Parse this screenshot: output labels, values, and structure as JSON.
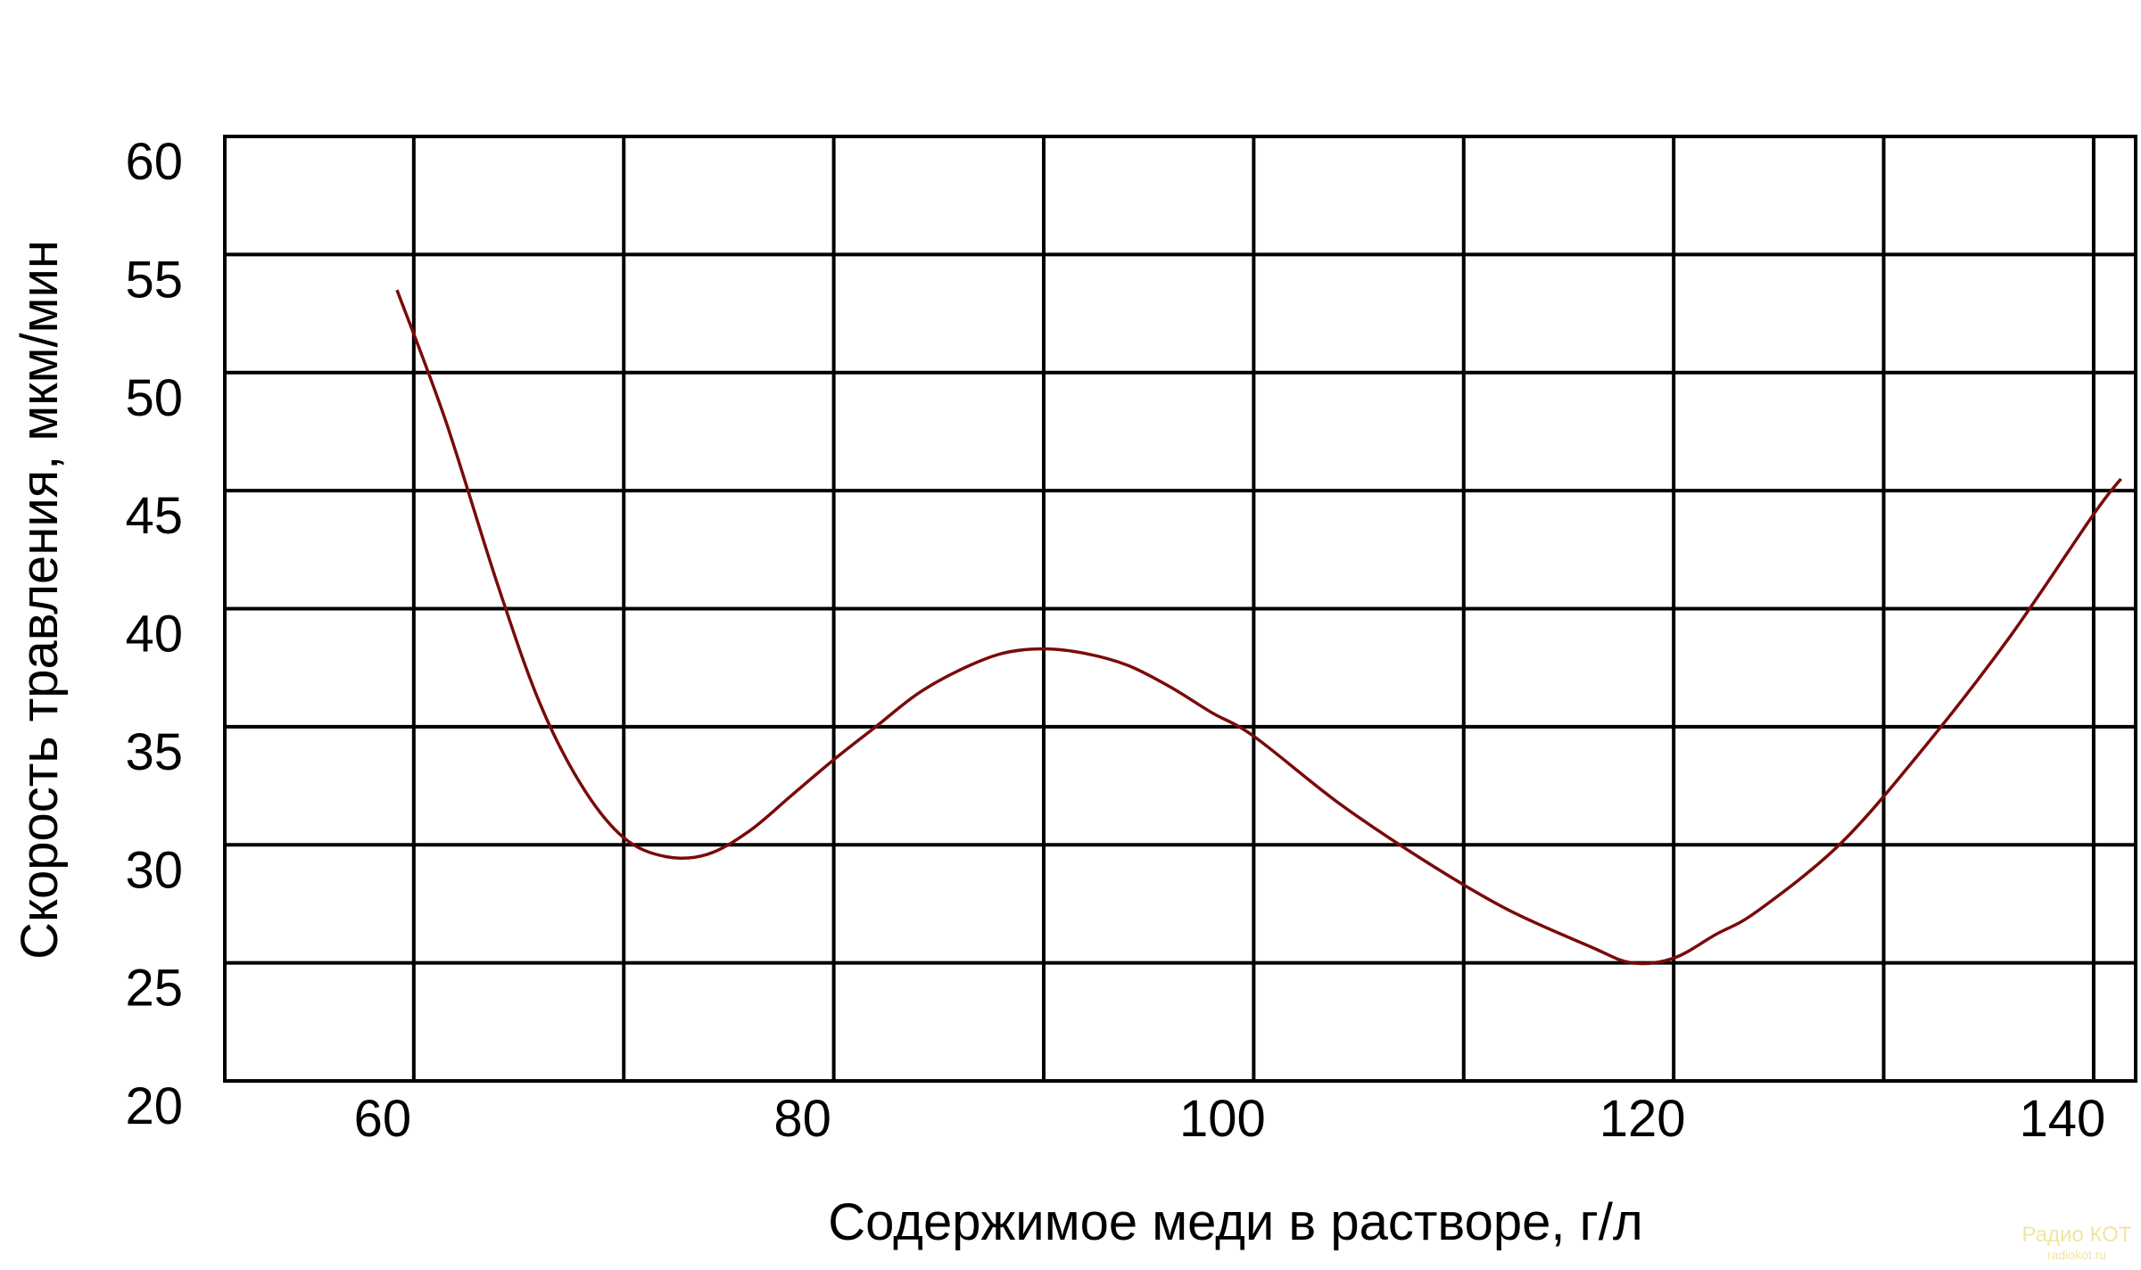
{
  "chart_data": {
    "type": "line",
    "title": "",
    "xlabel": "Содержимое меди в растворе, г/л",
    "ylabel": "Скорость травления, мкм/мин",
    "xlim": [
      51,
      142
    ],
    "ylim": [
      20,
      60
    ],
    "x_ticks": [
      60,
      80,
      100,
      120,
      140
    ],
    "y_ticks": [
      20,
      25,
      30,
      35,
      40,
      45,
      50,
      55,
      60
    ],
    "x_tick_labels": [
      "60",
      "80",
      "100",
      "120",
      "140"
    ],
    "y_tick_labels": [
      "20",
      "25",
      "30",
      "35",
      "40",
      "45",
      "50",
      "55",
      "60"
    ],
    "grid": true,
    "colors": {
      "line": "#7a0a0a"
    },
    "series": [
      {
        "x": [
          59.2,
          61.5,
          64,
          66,
          68,
          70,
          72,
          74,
          76,
          78,
          80,
          82,
          84,
          86,
          88,
          90,
          92,
          94,
          96,
          98,
          100,
          104,
          108,
          112,
          116,
          118,
          120,
          122,
          124,
          128,
          132,
          136,
          140,
          141.3
        ],
        "y": [
          53.5,
          48.0,
          41.0,
          36.0,
          32.5,
          30.3,
          29.5,
          29.6,
          30.6,
          32.1,
          33.6,
          35.0,
          36.4,
          37.4,
          38.1,
          38.3,
          38.1,
          37.6,
          36.7,
          35.6,
          34.6,
          31.8,
          29.4,
          27.3,
          25.7,
          25.0,
          25.2,
          26.2,
          27.2,
          30.1,
          34.2,
          38.8,
          44.0,
          45.5
        ]
      }
    ]
  },
  "watermark": {
    "line1": "Радио КОТ",
    "line2": "radiokot.ru"
  }
}
